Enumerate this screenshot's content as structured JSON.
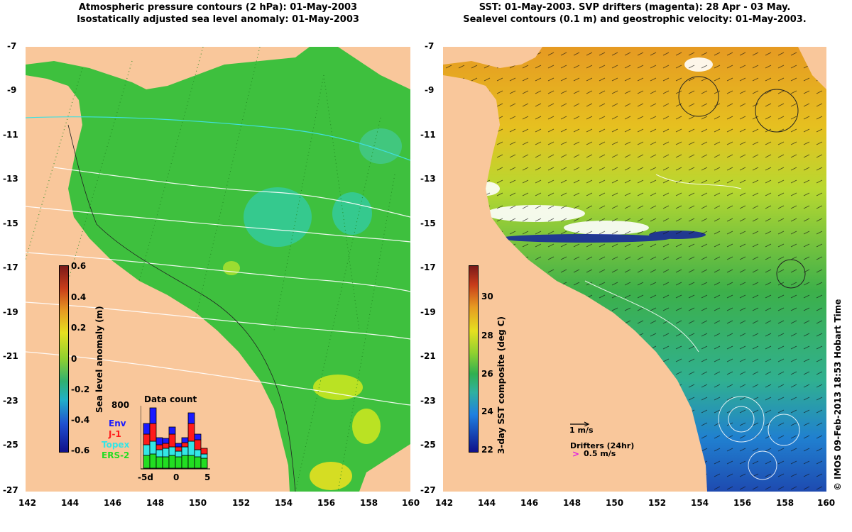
{
  "left_panel": {
    "title_line1": "Atmospheric pressure contours (2 hPa): 01-May-2003",
    "title_line2": "Isostatically adjusted sea level anomaly: 01-May-2003",
    "colorbar_label": "Sea level anomaly (m)",
    "colorbar_ticks": [
      "0.6",
      "0.4",
      "0.2",
      "0",
      "-0.2",
      "-0.4",
      "-0.6"
    ],
    "data_count": {
      "title": "Data count",
      "ymax_label": "800",
      "legend": [
        {
          "name": "Env",
          "color": "#1a1aff"
        },
        {
          "name": "J-1",
          "color": "#ff1a1a"
        },
        {
          "name": "Topex",
          "color": "#33e6e6"
        },
        {
          "name": "ERS-2",
          "color": "#22dd22"
        }
      ],
      "x_ticks": [
        "-5d",
        "0",
        "5"
      ]
    }
  },
  "right_panel": {
    "title_line1": "SST: 01-May-2003. SVP drifters (magenta): 28 Apr - 03 May.",
    "title_line2": "Sealevel contours (0.1 m) and geostrophic velocity: 01-May-2003.",
    "colorbar_label": "3-day SST composite (deg C)",
    "colorbar_ticks": [
      "30",
      "28",
      "26",
      "24",
      "22"
    ],
    "velocity_scale_label": "1 m/s",
    "drifters_label": "Drifters (24hr)",
    "drifters_speed_label": "0.5 m/s"
  },
  "axes": {
    "lat_ticks": [
      "-7",
      "-9",
      "-11",
      "-13",
      "-15",
      "-17",
      "-19",
      "-21",
      "-23",
      "-25",
      "-27"
    ],
    "lon_ticks": [
      "142",
      "144",
      "146",
      "148",
      "150",
      "152",
      "154",
      "156",
      "158",
      "160"
    ]
  },
  "credit": "© IMOS 09-Feb-2013 18:53 Hobart Time",
  "colors": {
    "land": "#f9c79b",
    "ocean_left": "#3ec03e",
    "ocean_right": "#4aa84a"
  }
}
